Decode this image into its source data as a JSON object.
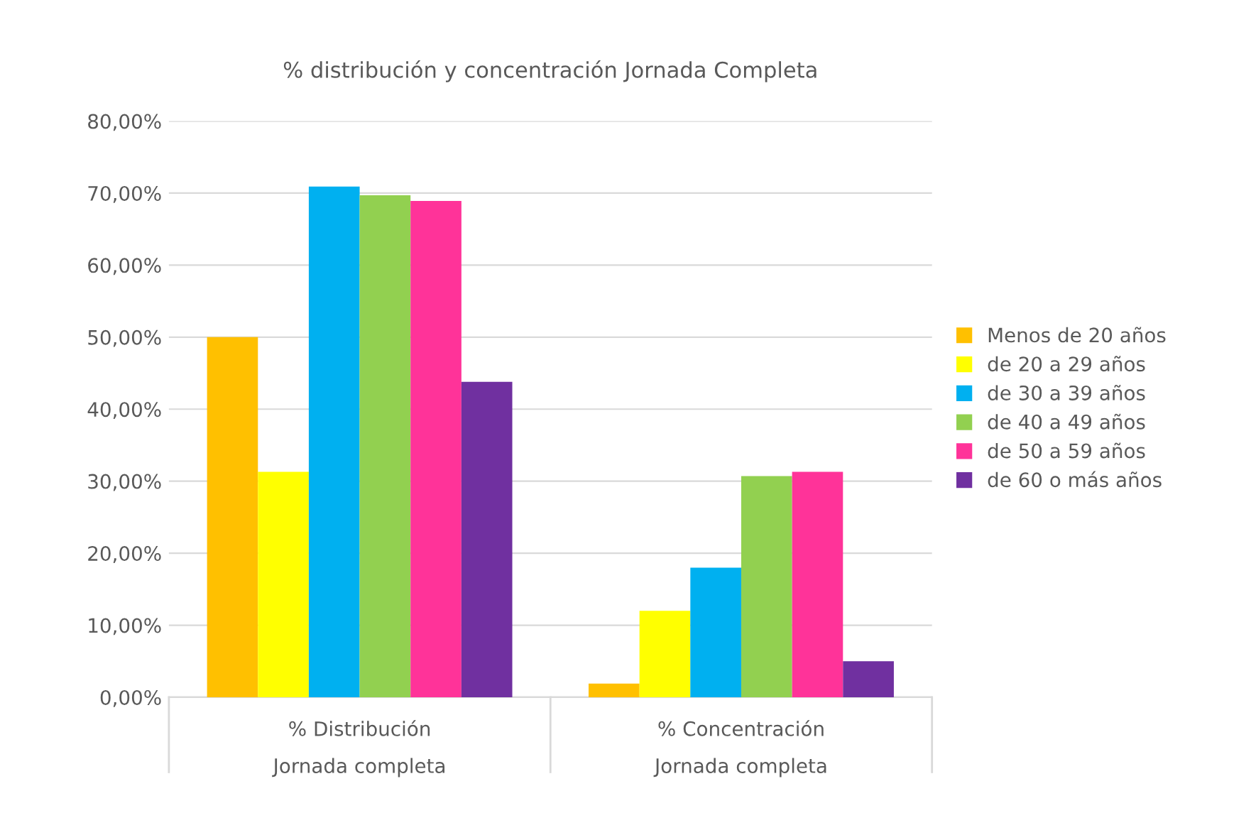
{
  "chart_data": {
    "type": "bar",
    "title": "% distribución y concentración Jornada Completa",
    "categories": [
      "% Distribución\nJornada completa",
      "% Concentración\nJornada completa"
    ],
    "series": [
      {
        "name": "Menos de 20 años",
        "color": "#ffc000",
        "values": [
          50.0,
          1.9
        ]
      },
      {
        "name": "de 20 a 29 años",
        "color": "#ffff00",
        "values": [
          31.3,
          12.0
        ]
      },
      {
        "name": "de 30 a 39 años",
        "color": "#00b0f0",
        "values": [
          70.9,
          18.0
        ]
      },
      {
        "name": "de 40 a 49 años",
        "color": "#92d050",
        "values": [
          69.7,
          30.7
        ]
      },
      {
        "name": "de 50 a 59 años",
        "color": "#ff3399",
        "values": [
          68.9,
          31.3
        ]
      },
      {
        "name": "de 60 o más años",
        "color": "#7030a0",
        "values": [
          43.8,
          5.0
        ]
      }
    ],
    "ylim": [
      0,
      80
    ],
    "yticks": [
      {
        "value": 0,
        "label": "0,00%"
      },
      {
        "value": 10,
        "label": "10,00%"
      },
      {
        "value": 20,
        "label": "20,00%"
      },
      {
        "value": 30,
        "label": "30,00%"
      },
      {
        "value": 40,
        "label": "40,00%"
      },
      {
        "value": 50,
        "label": "50,00%"
      },
      {
        "value": 60,
        "label": "60,00%"
      },
      {
        "value": 70,
        "label": "70,00%"
      },
      {
        "value": 80,
        "label": "80,00%"
      }
    ],
    "grid": "y",
    "legend": "right"
  }
}
